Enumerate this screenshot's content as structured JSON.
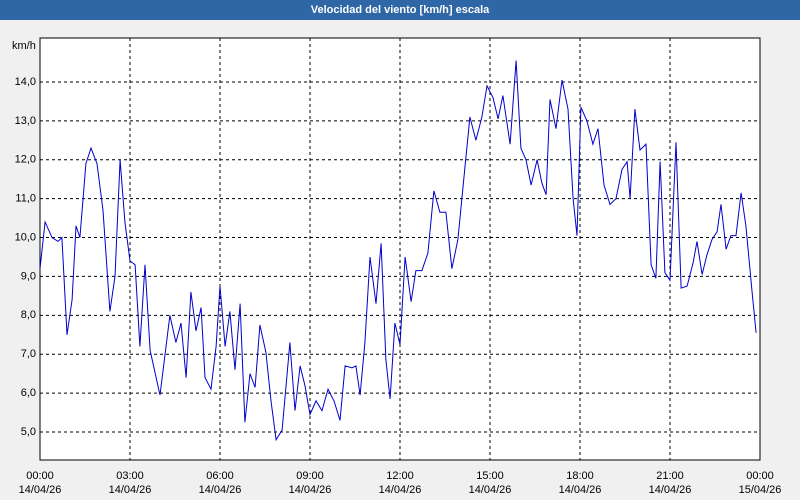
{
  "chart_data": {
    "type": "line",
    "title": "Velocidad del viento [km/h] escala",
    "y_unit": "km/h",
    "color": "#0000cc",
    "grid": true,
    "xlim": [
      0,
      24
    ],
    "ylim": [
      4.28,
      15.13
    ],
    "xticks": [
      {
        "value": 0,
        "label": "00:00"
      },
      {
        "value": 3,
        "label": "03:00"
      },
      {
        "value": 6,
        "label": "06:00"
      },
      {
        "value": 9,
        "label": "09:00"
      },
      {
        "value": 12,
        "label": "12:00"
      },
      {
        "value": 15,
        "label": "15:00"
      },
      {
        "value": 18,
        "label": "18:00"
      },
      {
        "value": 21,
        "label": "21:00"
      },
      {
        "value": 24,
        "label": "00:00"
      }
    ],
    "xtick_dates": [
      "14/04/26",
      "14/04/26",
      "14/04/26",
      "14/04/26",
      "14/04/26",
      "14/04/26",
      "14/04/26",
      "14/04/26",
      "15/04/26"
    ],
    "yticks": [
      {
        "value": 5,
        "label": "5,0"
      },
      {
        "value": 6,
        "label": "6,0"
      },
      {
        "value": 7,
        "label": "7,0"
      },
      {
        "value": 8,
        "label": "8,0"
      },
      {
        "value": 9,
        "label": "9,0"
      },
      {
        "value": 10,
        "label": "10,0"
      },
      {
        "value": 11,
        "label": "11,0"
      },
      {
        "value": 12,
        "label": "12,0"
      },
      {
        "value": 13,
        "label": "13,0"
      },
      {
        "value": 14,
        "label": "14,0"
      }
    ],
    "x": [
      0,
      0.17,
      0.4,
      0.6,
      0.73,
      0.9,
      1.07,
      1.2,
      1.33,
      1.53,
      1.7,
      1.9,
      2.1,
      2.33,
      2.5,
      2.67,
      2.83,
      3.0,
      3.17,
      3.33,
      3.5,
      3.67,
      4.0,
      4.33,
      4.53,
      4.7,
      4.87,
      5.03,
      5.2,
      5.37,
      5.5,
      5.7,
      5.87,
      6.0,
      6.17,
      6.33,
      6.5,
      6.67,
      6.83,
      7.0,
      7.17,
      7.33,
      7.53,
      7.7,
      7.87,
      8.07,
      8.33,
      8.5,
      8.67,
      8.83,
      9.0,
      9.2,
      9.4,
      9.6,
      9.8,
      10.0,
      10.17,
      10.4,
      10.53,
      10.67,
      10.83,
      11.0,
      11.2,
      11.37,
      11.53,
      11.67,
      11.83,
      12.0,
      12.17,
      12.37,
      12.53,
      12.73,
      12.93,
      13.13,
      13.33,
      13.53,
      13.73,
      13.93,
      14.17,
      14.33,
      14.53,
      14.73,
      14.9,
      15.1,
      15.27,
      15.43,
      15.67,
      15.87,
      16.03,
      16.2,
      16.37,
      16.57,
      16.73,
      16.87,
      17.0,
      17.2,
      17.4,
      17.6,
      17.77,
      17.9,
      18.03,
      18.23,
      18.43,
      18.6,
      18.8,
      19.0,
      19.2,
      19.4,
      19.57,
      19.67,
      19.83,
      20.0,
      20.2,
      20.37,
      20.53,
      20.67,
      20.83,
      21.0,
      21.2,
      21.37,
      21.57,
      21.77,
      21.9,
      22.07,
      22.23,
      22.4,
      22.57,
      22.7,
      22.87,
      23.03,
      23.2,
      23.37,
      23.53,
      23.73,
      23.87
    ],
    "values": [
      9.2,
      10.4,
      10.0,
      9.9,
      10.0,
      7.5,
      8.4,
      10.3,
      10.0,
      11.9,
      12.3,
      11.9,
      10.7,
      8.1,
      9.0,
      12.0,
      10.4,
      9.4,
      9.3,
      7.2,
      9.3,
      7.1,
      5.95,
      8.0,
      7.3,
      7.8,
      6.4,
      8.6,
      7.6,
      8.2,
      6.4,
      6.1,
      7.2,
      8.75,
      7.2,
      8.1,
      6.6,
      8.3,
      5.25,
      6.5,
      6.15,
      7.75,
      7.05,
      5.8,
      4.8,
      5.05,
      7.3,
      5.55,
      6.7,
      6.2,
      5.45,
      5.8,
      5.55,
      6.1,
      5.8,
      5.3,
      6.7,
      6.65,
      6.7,
      5.95,
      7.3,
      9.5,
      8.3,
      9.85,
      6.85,
      5.85,
      7.8,
      7.25,
      9.5,
      8.35,
      9.15,
      9.15,
      9.6,
      11.2,
      10.65,
      10.65,
      9.2,
      9.95,
      11.85,
      13.1,
      12.5,
      13.1,
      13.9,
      13.6,
      13.05,
      13.65,
      12.4,
      14.55,
      12.3,
      12.0,
      11.35,
      12.0,
      11.4,
      11.1,
      13.55,
      12.8,
      14.05,
      13.3,
      11.0,
      10.05,
      13.35,
      13.0,
      12.4,
      12.8,
      11.35,
      10.85,
      11.0,
      11.75,
      11.95,
      11.0,
      13.3,
      12.25,
      12.4,
      9.3,
      8.95,
      11.95,
      9.1,
      8.9,
      12.45,
      8.7,
      8.75,
      9.35,
      9.9,
      9.05,
      9.55,
      9.95,
      10.15,
      10.85,
      9.7,
      10.05,
      10.05,
      11.15,
      10.3,
      8.65,
      7.55
    ]
  }
}
